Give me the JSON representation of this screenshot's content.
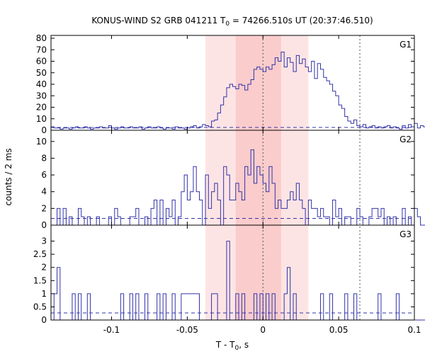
{
  "chart_data": {
    "type": "line",
    "title": "KONUS-WIND S2 GRB 041211 T",
    "title_sub": "0",
    "title_rest": " = 74266.510s UT (20:37:46.510)",
    "xlabel": "T - T",
    "xlabel_sub": "0",
    "xlabel_rest": ", s",
    "ylabel": "counts / 2 ms",
    "xlim": [
      -0.14,
      0.1
    ],
    "x_ticks": [
      -0.1,
      -0.05,
      0,
      0.05,
      0.1
    ],
    "x_tick_labels": [
      "-0.1",
      "-0.05",
      "0",
      "0.05",
      "0.1"
    ],
    "bin_width": 0.002,
    "x_start": -0.14,
    "shaded_regions": [
      {
        "from": -0.038,
        "to": 0.03,
        "color": "#fde4e4"
      },
      {
        "from": -0.018,
        "to": 0.012,
        "color": "#fbcccc"
      }
    ],
    "vertical_markers": [
      0,
      0.064
    ],
    "line_color": "#3333aa",
    "panels": [
      {
        "name": "G1",
        "ylim": [
          0,
          80
        ],
        "y_ticks": [
          0,
          10,
          20,
          30,
          40,
          50,
          60,
          70,
          80
        ],
        "background_level": 2.5,
        "values": [
          3,
          2,
          2,
          1,
          2,
          2,
          1,
          2,
          3,
          2,
          2,
          3,
          2,
          1,
          2,
          2,
          3,
          2,
          2,
          4,
          2,
          1,
          2,
          3,
          2,
          2,
          3,
          2,
          2,
          3,
          1,
          2,
          3,
          2,
          2,
          3,
          2,
          1,
          2,
          2,
          1,
          3,
          2,
          2,
          1,
          2,
          3,
          4,
          2,
          3,
          5,
          4,
          3,
          8,
          9,
          15,
          22,
          29,
          37,
          40,
          38,
          36,
          40,
          39,
          35,
          40,
          44,
          53,
          55,
          53,
          51,
          55,
          53,
          57,
          63,
          60,
          68,
          55,
          63,
          59,
          51,
          65,
          58,
          62,
          55,
          51,
          60,
          45,
          58,
          53,
          46,
          43,
          40,
          34,
          30,
          22,
          19,
          12,
          8,
          6,
          9,
          4,
          3,
          5,
          2,
          3,
          4,
          2,
          3,
          2,
          3,
          4,
          2,
          3,
          2,
          1,
          4,
          2,
          5,
          3,
          6,
          2,
          4,
          3,
          5,
          2,
          6,
          8,
          3,
          4,
          2,
          6,
          4,
          3,
          2,
          5,
          3,
          2
        ]
      },
      {
        "name": "G2",
        "ylim": [
          0,
          11
        ],
        "y_ticks": [
          0,
          2,
          4,
          6,
          8,
          10
        ],
        "background_level": 0.8,
        "values": [
          0,
          0,
          2,
          0,
          2,
          0,
          1,
          0,
          0,
          2,
          1,
          0,
          1,
          0,
          0,
          1,
          0,
          0,
          0,
          1,
          0,
          2,
          1,
          0,
          0,
          0,
          1,
          1,
          2,
          0,
          0,
          1,
          0,
          2,
          3,
          0,
          3,
          0,
          2,
          1,
          3,
          0,
          1,
          4,
          6,
          3,
          4,
          7,
          4,
          3,
          0,
          6,
          2,
          4,
          5,
          3,
          0,
          7,
          6,
          3,
          3,
          5,
          4,
          3,
          7,
          6,
          9,
          5,
          7,
          6,
          5,
          4,
          7,
          5,
          2,
          3,
          2,
          2,
          3,
          4,
          3,
          5,
          3,
          2,
          0,
          3,
          2,
          2,
          1,
          2,
          1,
          1,
          0,
          3,
          1,
          2,
          0,
          1,
          1,
          0,
          0,
          2,
          1,
          0,
          0,
          1,
          2,
          2,
          1,
          2,
          0,
          1,
          0,
          1,
          0,
          0,
          2,
          0,
          1,
          0,
          2,
          1,
          0,
          0,
          2,
          0,
          1,
          0,
          1,
          0,
          1,
          2,
          1,
          0,
          1,
          0
        ]
      },
      {
        "name": "G3",
        "ylim": [
          0,
          3.5
        ],
        "y_ticks": [
          0,
          0.5,
          1,
          1.5,
          2,
          2.5,
          3
        ],
        "y_tick_labels": [
          "0",
          "0.5",
          "1",
          "1.5",
          "2",
          "2.5",
          "3"
        ],
        "background_level": 0.27,
        "values": [
          0,
          1,
          2,
          0,
          0,
          0,
          0,
          1,
          0,
          1,
          0,
          0,
          1,
          0,
          0,
          0,
          0,
          0,
          0,
          0,
          0,
          0,
          0,
          1,
          0,
          0,
          1,
          0,
          1,
          0,
          0,
          1,
          0,
          0,
          0,
          1,
          0,
          1,
          0,
          0,
          1,
          0,
          0,
          1,
          1,
          1,
          1,
          1,
          1,
          0,
          0,
          0,
          0,
          1,
          1,
          0,
          0,
          0,
          3,
          0,
          0,
          1,
          0,
          1,
          0,
          0,
          0,
          1,
          0,
          1,
          0,
          1,
          0,
          1,
          0,
          0,
          0,
          1,
          2,
          0,
          1,
          0,
          0,
          0,
          0,
          0,
          0,
          0,
          0,
          1,
          0,
          0,
          1,
          0,
          0,
          0,
          0,
          1,
          0,
          0,
          1,
          0,
          0,
          0,
          0,
          0,
          0,
          0,
          1,
          0,
          0,
          0,
          0,
          0,
          1,
          0,
          0,
          0,
          0,
          0,
          0,
          0,
          0,
          0,
          0,
          0,
          0,
          1,
          0,
          0,
          0,
          0,
          0,
          0,
          0,
          0,
          0
        ]
      }
    ]
  }
}
